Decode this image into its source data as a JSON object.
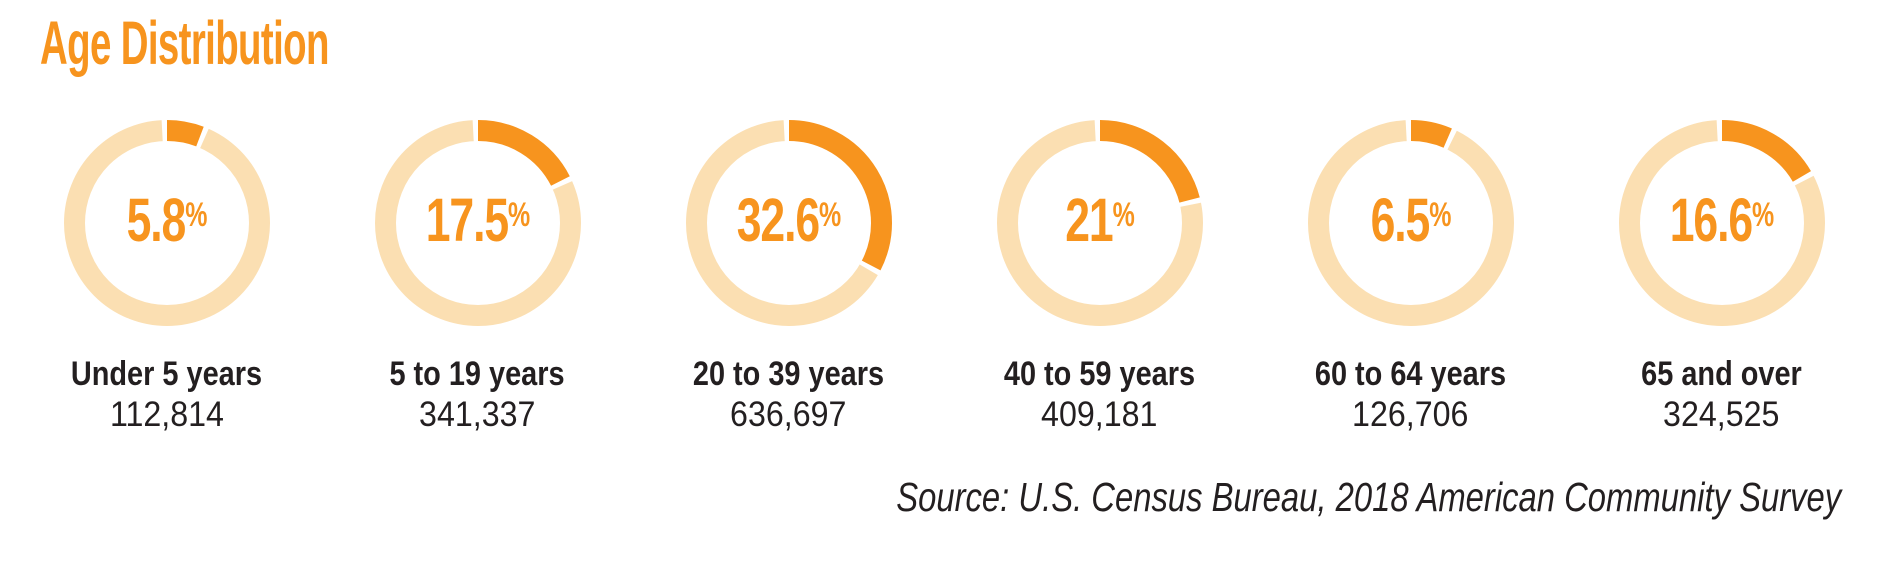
{
  "title": "Age Distribution",
  "percent_sign": "%",
  "source_note": "Source: U.S. Census Bureau, 2018 American Community Survey",
  "colors": {
    "accent_orange": "#F7941E",
    "ring_peach": "#FBDFB2",
    "gap_white": "#FFFFFF",
    "text_dark": "#231F20",
    "background": "#FFFFFF"
  },
  "chart_data": {
    "type": "pie",
    "subtype": "donut-multiples",
    "title": "Age Distribution",
    "units": "percent of total population",
    "grid": false,
    "legend_position": "none",
    "arc_start_deg": 0,
    "arc_direction": "clockwise",
    "categories": [
      "Under 5 years",
      "5 to 19 years",
      "20 to 39 years",
      "40 to 59 years",
      "60 to 64 years",
      "65 and over"
    ],
    "values": [
      5.8,
      17.5,
      32.6,
      21,
      6.5,
      16.6
    ],
    "series": [
      {
        "label": "Under 5 years",
        "pct": 5.8,
        "pct_label": "5.8",
        "count": "112,814"
      },
      {
        "label": "5 to 19 years",
        "pct": 17.5,
        "pct_label": "17.5",
        "count": "341,337"
      },
      {
        "label": "20 to 39 years",
        "pct": 32.6,
        "pct_label": "32.6",
        "count": "636,697"
      },
      {
        "label": "40 to 59 years",
        "pct": 21,
        "pct_label": "21",
        "count": "409,181"
      },
      {
        "label": "60 to 64 years",
        "pct": 6.5,
        "pct_label": "6.5",
        "count": "126,706"
      },
      {
        "label": "65 and over",
        "pct": 16.6,
        "pct_label": "16.6",
        "count": "324,525"
      }
    ],
    "source_note": "Source: U.S. Census Bureau, 2018 American Community Survey"
  }
}
